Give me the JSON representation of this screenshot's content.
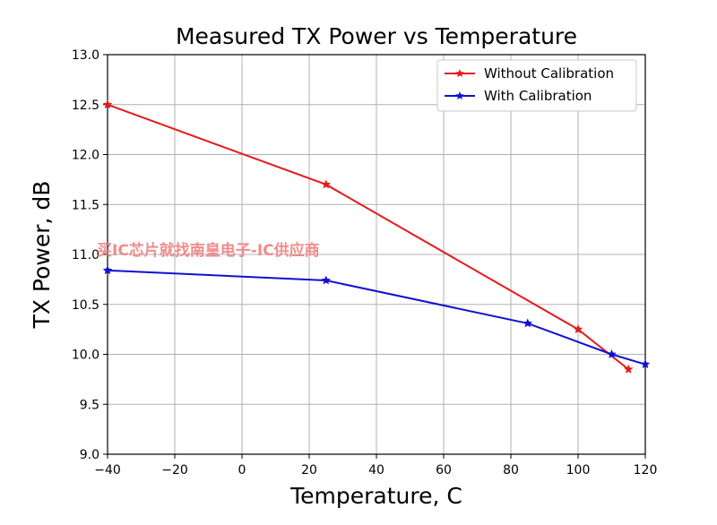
{
  "chart_data": {
    "type": "line",
    "title": "Measured TX Power vs Temperature",
    "xlabel": "Temperature, C",
    "ylabel": "TX Power, dB",
    "xlim": [
      -40,
      120
    ],
    "ylim": [
      9.0,
      13.0
    ],
    "xticks": [
      "−40",
      "−20",
      "0",
      "20",
      "40",
      "60",
      "80",
      "100",
      "120"
    ],
    "yticks": [
      "9.0",
      "9.5",
      "10.0",
      "10.5",
      "11.0",
      "11.5",
      "12.0",
      "12.5",
      "13.0"
    ],
    "grid": true,
    "legend_position": "top-right",
    "series": [
      {
        "name": "Without Calibration",
        "color": "#e41a1c",
        "x": [
          -40,
          25,
          100,
          115
        ],
        "y": [
          12.5,
          11.7,
          10.25,
          9.85
        ]
      },
      {
        "name": "With Calibration",
        "color": "#1010d0",
        "x": [
          -40,
          25,
          85,
          110,
          120
        ],
        "y": [
          10.84,
          10.74,
          10.31,
          10.0,
          9.9
        ]
      }
    ]
  },
  "watermark": "买IC芯片就找南皇电子-IC供应商"
}
